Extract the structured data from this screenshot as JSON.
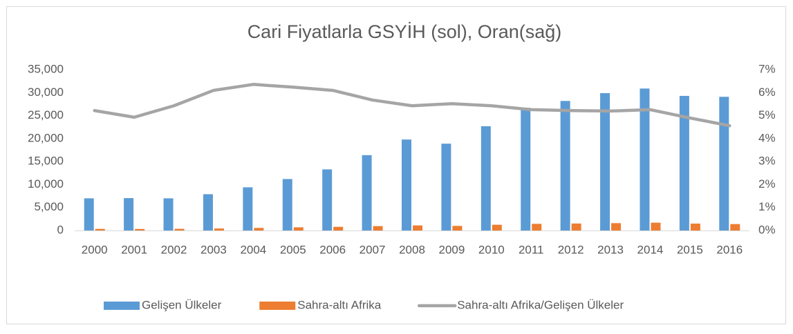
{
  "chart_data": {
    "type": "bar-line",
    "title": "Cari Fiyatlarla GSYİH (sol), Oran(sağ)",
    "categories": [
      "2000",
      "2001",
      "2002",
      "2003",
      "2004",
      "2005",
      "2006",
      "2007",
      "2008",
      "2009",
      "2010",
      "2011",
      "2012",
      "2013",
      "2014",
      "2015",
      "2016"
    ],
    "series": [
      {
        "name": "Gelişen Ülkeler",
        "type": "bar",
        "color": "#5b9bd5",
        "values": [
          7000,
          7050,
          7000,
          7900,
          9400,
          11200,
          13300,
          16400,
          19800,
          18900,
          22700,
          26700,
          28200,
          29900,
          30900,
          29300,
          29100
        ]
      },
      {
        "name": "Sahra-altı Afrika",
        "type": "bar",
        "color": "#ed7d31",
        "values": [
          350,
          330,
          360,
          440,
          560,
          690,
          800,
          960,
          1100,
          1000,
          1250,
          1450,
          1520,
          1600,
          1700,
          1500,
          1400
        ]
      },
      {
        "name": "Sahra-altı Afrika/Gelişen Ülkeler",
        "type": "line",
        "axis": "y2",
        "color": "#a5a5a5",
        "values": [
          5.22,
          4.93,
          5.43,
          6.1,
          6.36,
          6.24,
          6.1,
          5.68,
          5.43,
          5.52,
          5.43,
          5.26,
          5.22,
          5.2,
          5.26,
          4.9,
          4.56
        ]
      }
    ],
    "ylim": [
      0,
      35000
    ],
    "yticks": [
      0,
      {
        "value": 5000,
        "label": "5,000"
      },
      {
        "value": 10000,
        "label": "10,000"
      },
      {
        "value": 15000,
        "label": "15,000"
      },
      {
        "value": 20000,
        "label": "20,000"
      },
      {
        "value": 25000,
        "label": "25,000"
      },
      {
        "value": 30000,
        "label": "30,000"
      },
      {
        "value": 35000,
        "label": "35,000"
      }
    ],
    "y2lim": [
      0,
      7
    ],
    "y2ticks": [
      {
        "value": 0,
        "label": "0%"
      },
      {
        "value": 1,
        "label": "1%"
      },
      {
        "value": 2,
        "label": "2%"
      },
      {
        "value": 3,
        "label": "3%"
      },
      {
        "value": 4,
        "label": "4%"
      },
      {
        "value": 5,
        "label": "5%"
      },
      {
        "value": 6,
        "label": "6%"
      },
      {
        "value": 7,
        "label": "7%"
      }
    ],
    "grid": false,
    "legend": "bottom"
  }
}
